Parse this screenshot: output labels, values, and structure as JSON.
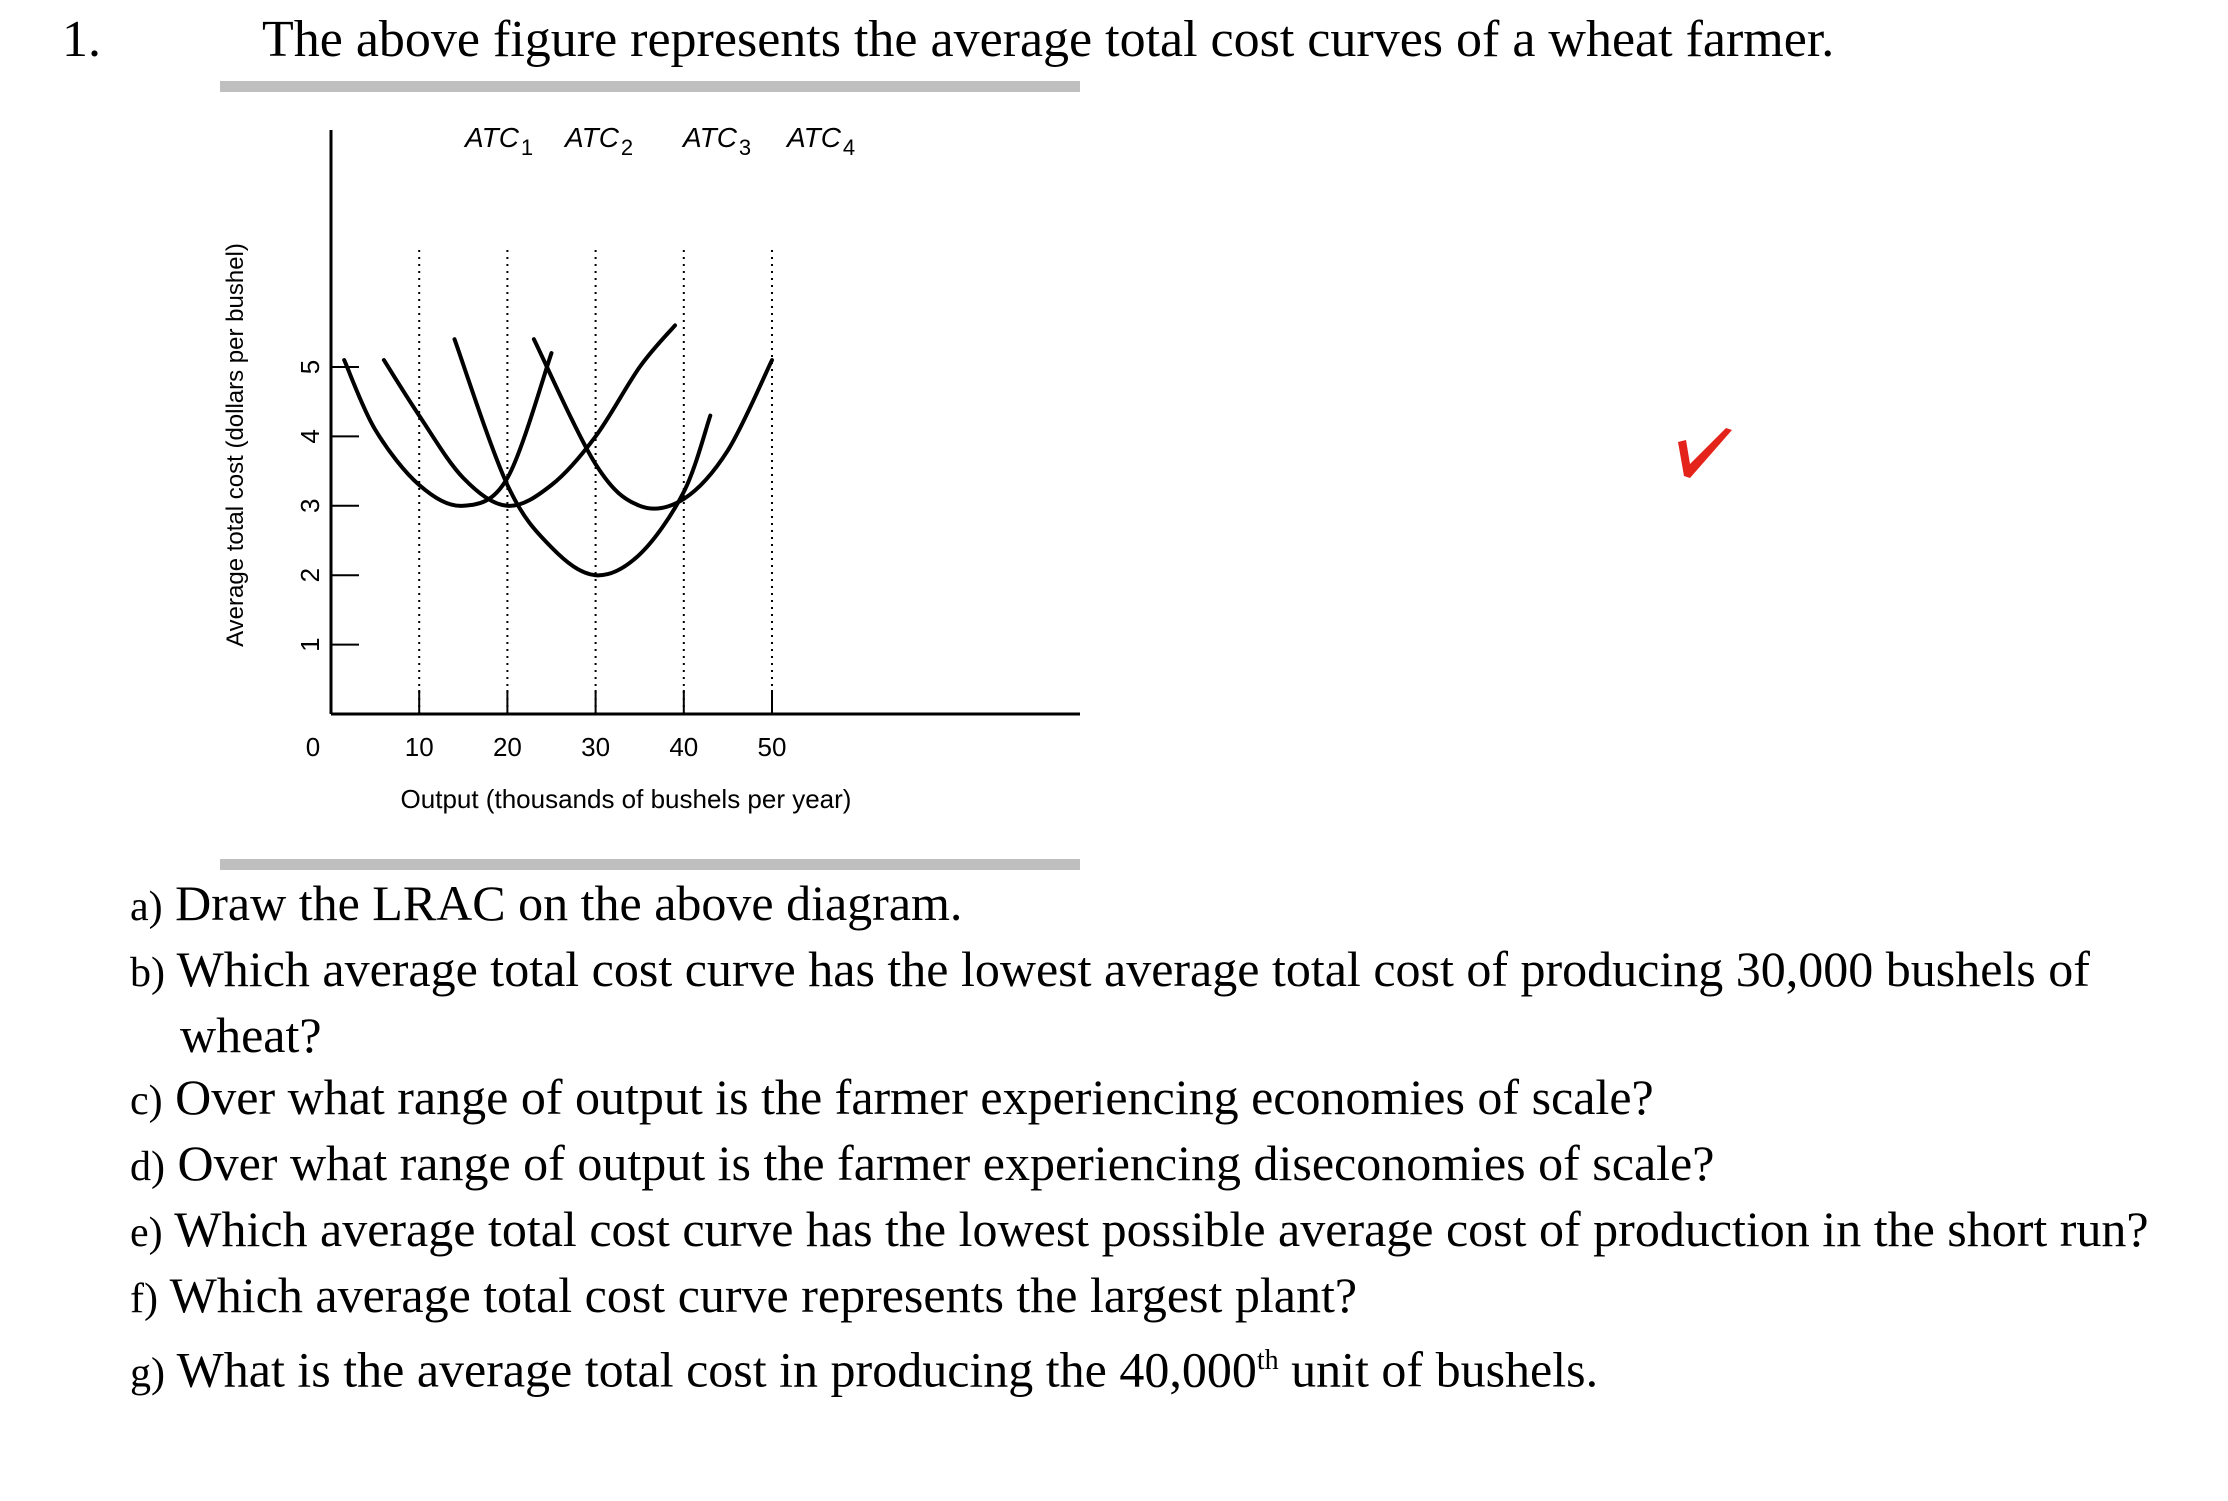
{
  "question_number": "1.",
  "intro": "The above figure represents the average total cost curves of a wheat farmer.",
  "chart_data": {
    "type": "line",
    "xlabel": "Output (thousands of bushels per year)",
    "ylabel": "Average total cost (dollars per bushel)",
    "x_ticks": [
      "0",
      "10",
      "20",
      "30",
      "40",
      "50"
    ],
    "y_ticks": [
      "1",
      "2",
      "3",
      "4",
      "5"
    ],
    "xlim": [
      0,
      58
    ],
    "ylim": [
      0,
      5.8
    ],
    "grid": "dotted verticals at 10, 20, 30, 40, 50",
    "series": [
      {
        "name": "ATC1",
        "x": [
          1.5,
          5,
          10,
          15,
          20,
          25
        ],
        "y": [
          5.1,
          4.1,
          3.3,
          3.0,
          3.4,
          5.2
        ]
      },
      {
        "name": "ATC2",
        "x": [
          6,
          10,
          15,
          20,
          25,
          30,
          35,
          39
        ],
        "y": [
          5.1,
          4.3,
          3.4,
          3.0,
          3.3,
          4.0,
          5.0,
          5.6
        ]
      },
      {
        "name": "ATC3",
        "x": [
          14,
          20,
          25,
          30,
          35,
          40,
          43
        ],
        "y": [
          5.4,
          3.3,
          2.4,
          2.0,
          2.3,
          3.2,
          4.3
        ]
      },
      {
        "name": "ATC4",
        "x": [
          23,
          30,
          35,
          40,
          45,
          50
        ],
        "y": [
          5.4,
          3.6,
          3.0,
          3.1,
          3.8,
          5.1
        ]
      }
    ],
    "curve_labels": [
      {
        "name_main": "ATC",
        "name_sub": "1"
      },
      {
        "name_main": "ATC",
        "name_sub": "2"
      },
      {
        "name_main": "ATC",
        "name_sub": "3"
      },
      {
        "name_main": "ATC",
        "name_sub": "4"
      }
    ],
    "line_color": "#000000",
    "rule_color": "#bfbfbf"
  },
  "mark_color": "#e4231b",
  "questions": [
    {
      "letter": "a)",
      "text": "Draw the LRAC on the above diagram."
    },
    {
      "letter": "b)",
      "text": "Which average total cost curve has the lowest average total cost of producing 30,000 bushels of wheat?"
    },
    {
      "letter": "c)",
      "text": "Over what range of output is the farmer experiencing economies of scale?"
    },
    {
      "letter": "d)",
      "text": "Over what range of output is the farmer experiencing diseconomies of scale?"
    },
    {
      "letter": "e)",
      "text": "Which average total cost curve has the lowest possible average cost of production in the short run?"
    },
    {
      "letter": "f)",
      "text": "Which average total cost curve represents the largest plant?"
    },
    {
      "letter": "g)",
      "text_before": "What is the average total cost in producing the 40,000",
      "sup": "th",
      "text_after": " unit of bushels."
    }
  ]
}
